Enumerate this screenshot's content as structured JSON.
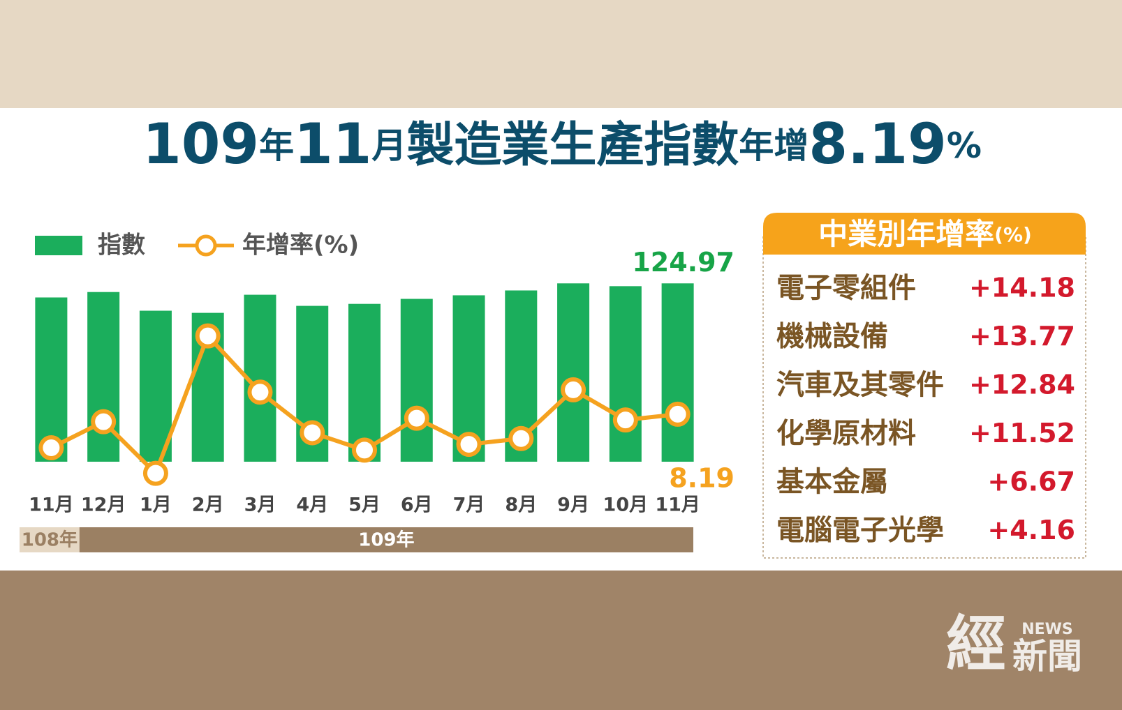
{
  "chart_data": {
    "type": "bar-line",
    "title_parts": [
      "109",
      "年",
      "11",
      "月",
      "製造業生產指數",
      "年增",
      "8.19",
      "%"
    ],
    "categories": [
      "11月",
      "12月",
      "1月",
      "2月",
      "3月",
      "4月",
      "5月",
      "6月",
      "7月",
      "8月",
      "9月",
      "10月",
      "11月"
    ],
    "year_bands": [
      "108年",
      "109年"
    ],
    "series": [
      {
        "name": "指數",
        "type": "bar",
        "color": "#1bae5c",
        "label_color": "#17a447",
        "values": [
          115.1,
          118.9,
          105.8,
          104.3,
          117.0,
          109.2,
          110.6,
          114.1,
          116.6,
          120.0,
          124.97,
          123.0,
          124.97
        ]
      },
      {
        "name": "年增率(%)",
        "type": "line",
        "axis": "y2",
        "color": "#f5a21f",
        "values": [
          2.4,
          6.9,
          -2.0,
          21.7,
          12.0,
          5.0,
          2.0,
          7.5,
          3.0,
          4.0,
          12.4,
          7.2,
          8.19
        ]
      }
    ],
    "ylim": [
      0,
      130
    ],
    "y2lim": [
      0,
      32
    ]
  },
  "industry_table": {
    "title": "中業別年增率",
    "unit": "(%)",
    "rows": [
      {
        "name": "電子零組件",
        "value": "+14.18"
      },
      {
        "name": "機械設備",
        "value": "+13.77"
      },
      {
        "name": "汽車及其零件",
        "value": "+12.84"
      },
      {
        "name": "化學原材料",
        "value": "+11.52"
      },
      {
        "name": "基本金屬",
        "value": "+6.67"
      },
      {
        "name": "電腦電子光學",
        "value": "+4.16"
      }
    ]
  },
  "watermark": {
    "main": "經",
    "tag": "NEWS",
    "sub": "新聞"
  }
}
